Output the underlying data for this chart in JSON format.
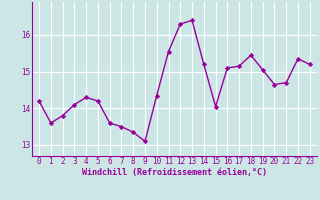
{
  "x": [
    0,
    1,
    2,
    3,
    4,
    5,
    6,
    7,
    8,
    9,
    10,
    11,
    12,
    13,
    14,
    15,
    16,
    17,
    18,
    19,
    20,
    21,
    22,
    23
  ],
  "y": [
    14.2,
    13.6,
    13.8,
    14.1,
    14.3,
    14.2,
    13.6,
    13.5,
    13.35,
    13.1,
    14.35,
    15.55,
    16.3,
    16.4,
    15.2,
    14.05,
    15.1,
    15.15,
    15.45,
    15.05,
    14.65,
    14.7,
    15.35,
    15.2
  ],
  "line_color": "#990099",
  "marker": "D",
  "marker_size": 2.2,
  "bg_color": "#cce6e6",
  "grid_color": "#ffffff",
  "xlabel": "Windchill (Refroidissement éolien,°C)",
  "xlabel_color": "#990099",
  "tick_color": "#990099",
  "ylim": [
    12.7,
    16.9
  ],
  "yticks": [
    13,
    14,
    15,
    16
  ],
  "xticks": [
    0,
    1,
    2,
    3,
    4,
    5,
    6,
    7,
    8,
    9,
    10,
    11,
    12,
    13,
    14,
    15,
    16,
    17,
    18,
    19,
    20,
    21,
    22,
    23
  ],
  "line_width": 1.0,
  "tick_fontsize": 5.5,
  "xlabel_fontsize": 6.0
}
